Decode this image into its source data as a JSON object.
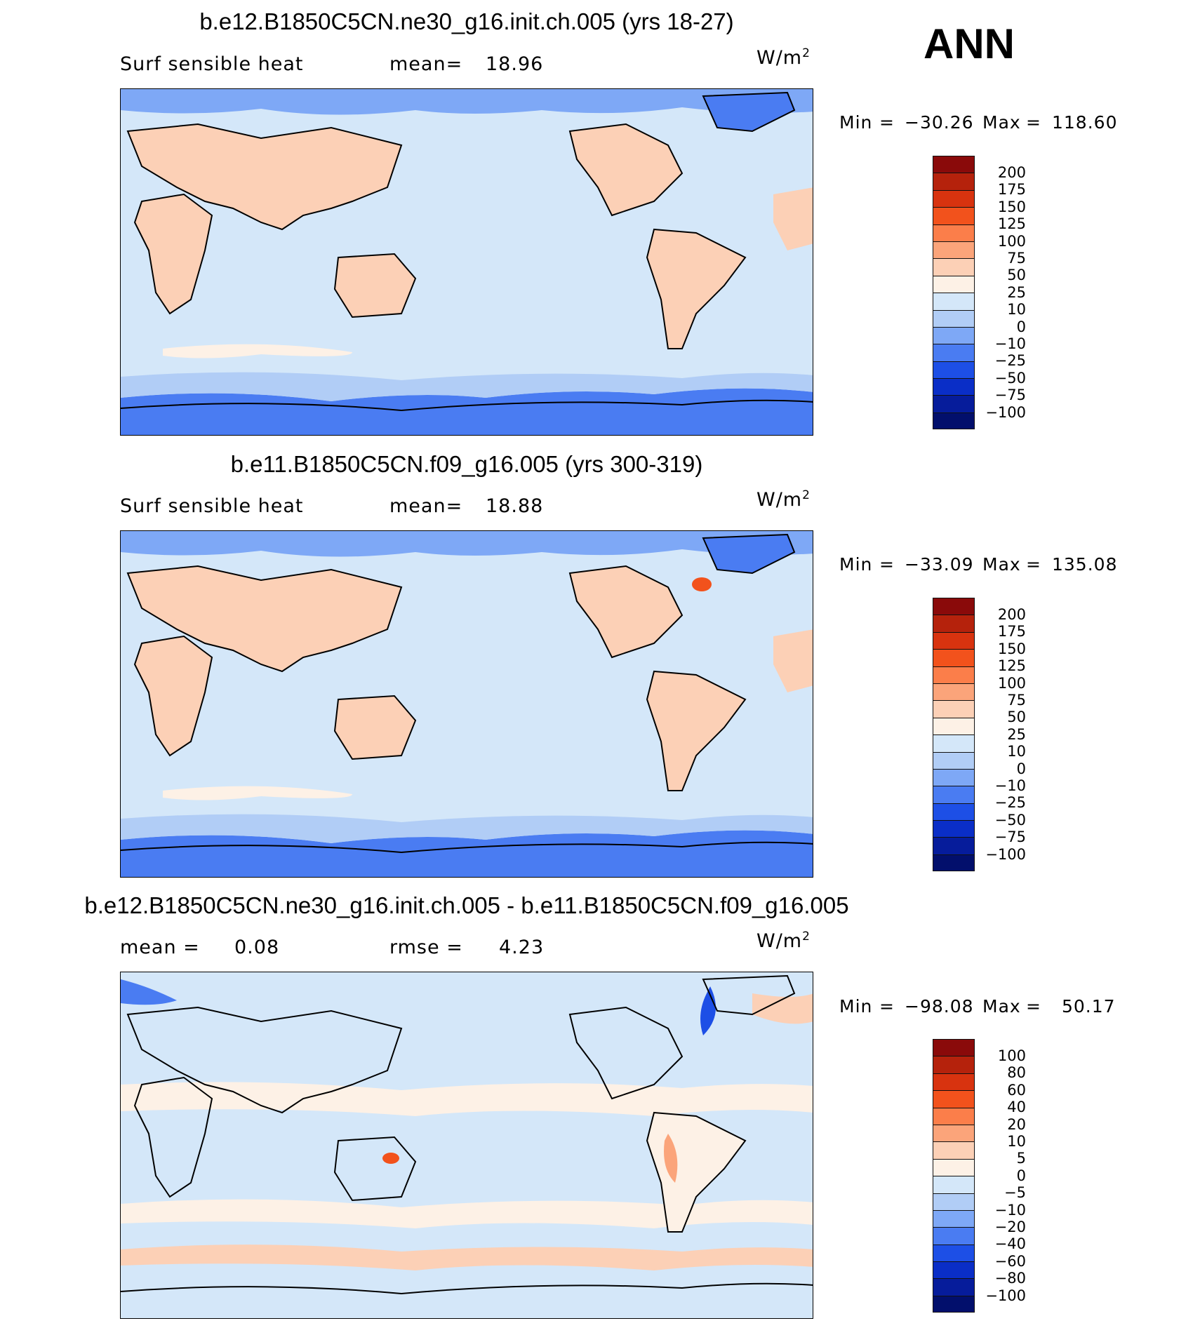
{
  "header": {
    "season": "ANN"
  },
  "panels": [
    {
      "title": "b.e12.B1850C5CN.ne30_g16.init.ch.005 (yrs 18-27)",
      "left_label": "Surf sensible heat",
      "stat_label": "mean=",
      "stat_value": "18.96",
      "second_label": "",
      "second_value": "",
      "units": "W/m",
      "units_sup": "2",
      "min_label": "Min",
      "min_value": "−30.26",
      "max_label": "Max",
      "max_value": "118.60",
      "colorbar_levels": [
        "200",
        "175",
        "150",
        "125",
        "100",
        "75",
        "50",
        "25",
        "10",
        "0",
        "−10",
        "−25",
        "−50",
        "−75",
        "−100"
      ],
      "colorbar_colors": [
        "#8a0a0a",
        "#b5220c",
        "#d8330f",
        "#f2521c",
        "#fb7e4a",
        "#fba47a",
        "#fcd0b6",
        "#fdf1e6",
        "#d4e7f9",
        "#b1cdf6",
        "#7ea8f6",
        "#4a7cf2",
        "#1d4fe6",
        "#0a2ec7",
        "#061c9b",
        "#020f6c"
      ]
    },
    {
      "title": "b.e11.B1850C5CN.f09_g16.005 (yrs 300-319)",
      "left_label": "Surf sensible heat",
      "stat_label": "mean=",
      "stat_value": "18.88",
      "second_label": "",
      "second_value": "",
      "units": "W/m",
      "units_sup": "2",
      "min_label": "Min",
      "min_value": "−33.09",
      "max_label": "Max",
      "max_value": "135.08",
      "colorbar_levels": [
        "200",
        "175",
        "150",
        "125",
        "100",
        "75",
        "50",
        "25",
        "10",
        "0",
        "−10",
        "−25",
        "−50",
        "−75",
        "−100"
      ],
      "colorbar_colors": [
        "#8a0a0a",
        "#b5220c",
        "#d8330f",
        "#f2521c",
        "#fb7e4a",
        "#fba47a",
        "#fcd0b6",
        "#fdf1e6",
        "#d4e7f9",
        "#b1cdf6",
        "#7ea8f6",
        "#4a7cf2",
        "#1d4fe6",
        "#0a2ec7",
        "#061c9b",
        "#020f6c"
      ]
    },
    {
      "title": "b.e12.B1850C5CN.ne30_g16.init.ch.005 - b.e11.B1850C5CN.f09_g16.005",
      "left_label": "mean =",
      "stat_label": "",
      "stat_value": "0.08",
      "second_label": "rmse =",
      "second_value": "4.23",
      "units": "W/m",
      "units_sup": "2",
      "min_label": "Min",
      "min_value": "−98.08",
      "max_label": "Max",
      "max_value": "50.17",
      "colorbar_levels": [
        "100",
        "80",
        "60",
        "40",
        "20",
        "10",
        "5",
        "0",
        "−5",
        "−10",
        "−20",
        "−40",
        "−60",
        "−80",
        "−100"
      ],
      "colorbar_colors": [
        "#8a0a0a",
        "#b5220c",
        "#d8330f",
        "#f2521c",
        "#fb7e4a",
        "#fba47a",
        "#fcd0b6",
        "#fdf1e6",
        "#d4e7f9",
        "#b1cdf6",
        "#7ea8f6",
        "#4a7cf2",
        "#1d4fe6",
        "#0a2ec7",
        "#061c9b",
        "#020f6c"
      ]
    }
  ],
  "colors": {
    "ocean": "#d4e7f9",
    "land_warm": "#fcd0b6",
    "cold": "#7ea8f6",
    "polar": "#4a7cf2"
  }
}
